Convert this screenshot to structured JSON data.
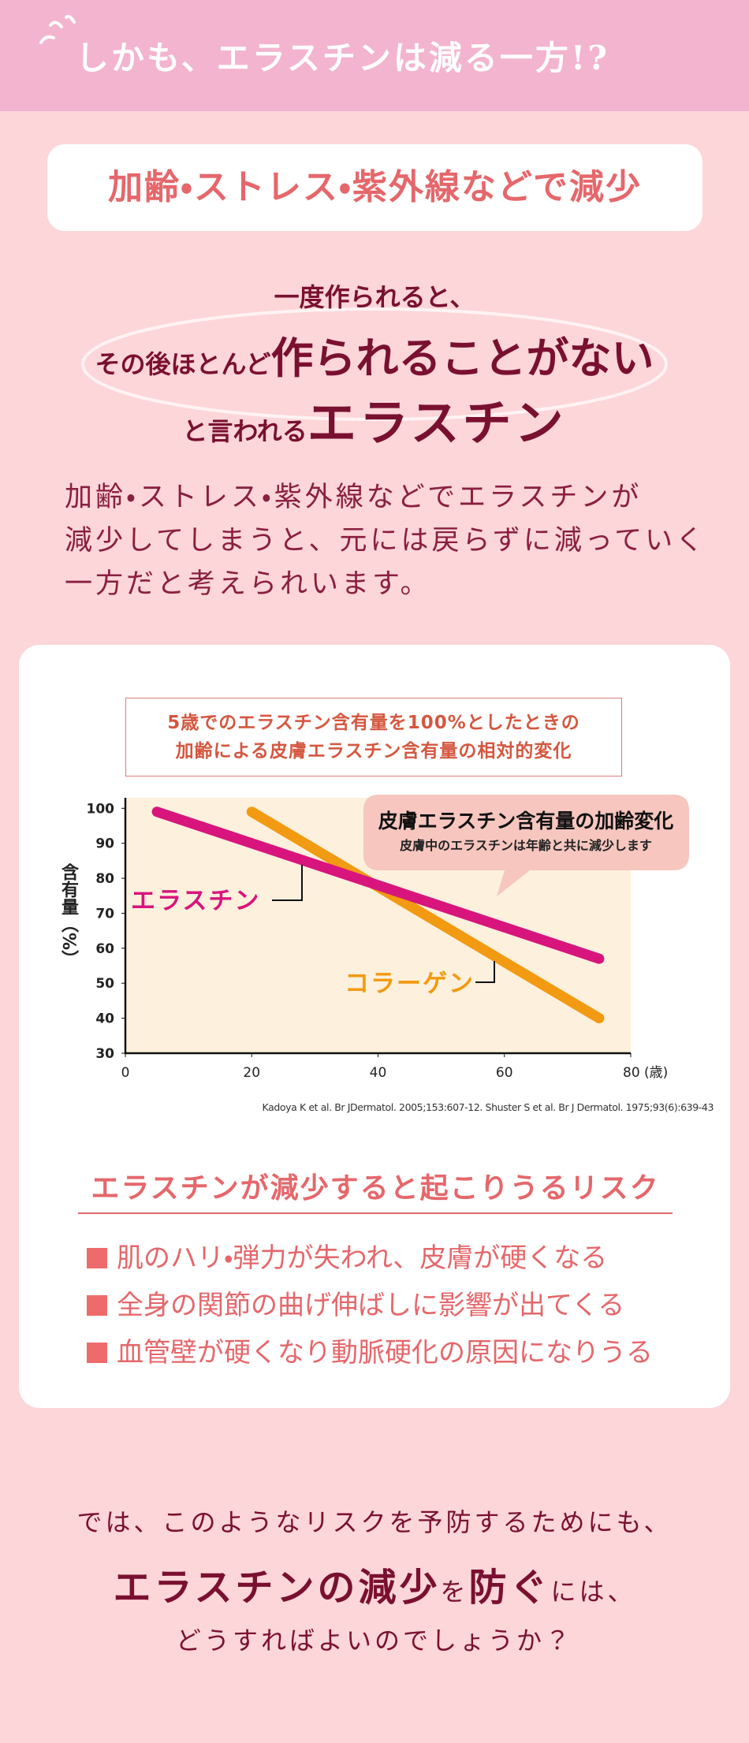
{
  "header": {
    "title": "しかも、エラスチンは減る一方!?"
  },
  "badge": {
    "text": "加齢・ストレス・紫外線などで減少"
  },
  "headline": {
    "line1": "一度作られると、",
    "line2": {
      "prefix": "その後ほとんど",
      "emphasis": "作られることがない"
    },
    "line3": {
      "prefix": "と言われる",
      "emphasis": "エラスチン"
    }
  },
  "paragraph": {
    "lines": [
      "加齢・ストレス・紫外線などでエラスチンが",
      "減少してしまうと、元には戻らずに減っていく",
      "一方だと考えられいます。"
    ]
  },
  "chart_data": {
    "type": "line",
    "title_lines": [
      "5歳でのエラスチン含有量を100%としたときの",
      "加齢による皮膚エラスチン含有量の相対的変化"
    ],
    "y_label": "含有量（%）",
    "xlim": [
      0,
      80
    ],
    "ylim": [
      30,
      103
    ],
    "xticks": [
      0,
      20,
      40,
      60,
      {
        "value": 80,
        "label": "80 (歳)"
      }
    ],
    "yticks": [
      30,
      40,
      50,
      60,
      70,
      80,
      90,
      100
    ],
    "series": [
      {
        "name": "エラスチン",
        "color": "#d8157c",
        "x": [
          5,
          75
        ],
        "values": [
          99,
          57
        ]
      },
      {
        "name": "コラーゲン",
        "color": "#f29a12",
        "x": [
          20,
          75
        ],
        "values": [
          99,
          40
        ]
      }
    ],
    "callout": {
      "title": "皮膚エラスチン含有量の加齢変化",
      "subtitle": "皮膚中のエラスチンは年齢と共に減少します"
    },
    "source": "Kadoya K et al. Br JDermatol. 2005;153:607-12. Shuster S et al. Br J Dermatol. 1975;93(6):639-43"
  },
  "risks": {
    "title": "エラスチンが減少すると起こりうるリスク",
    "items": [
      "肌のハリ・弾力が失われ、皮膚が硬くなる",
      "全身の関節の曲げ伸ばしに影響が出てくる",
      "血管壁が硬くなり動脈硬化の原因になりうる"
    ]
  },
  "closing": {
    "line1": "では、このようなリスクを予防するためにも、",
    "line2": [
      "エラスチンの減少",
      "を",
      "防ぐ",
      "には、"
    ],
    "line3": "どうすればよいのでしょうか？"
  }
}
